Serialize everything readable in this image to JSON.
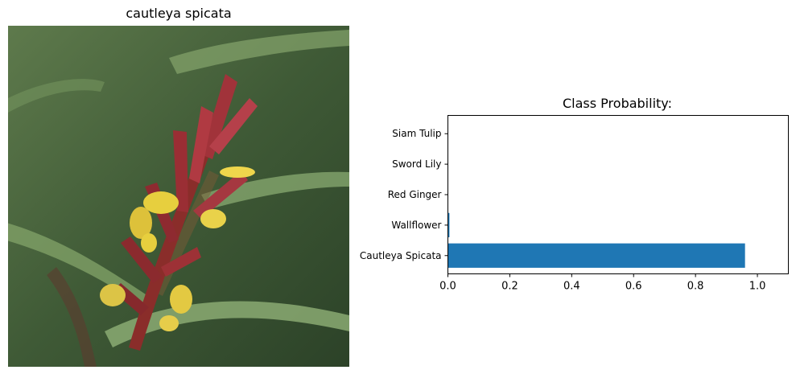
{
  "image_panel": {
    "title": "cautleya spicata",
    "subject": "photo of a cautleya spicata flower spike"
  },
  "chart_data": {
    "type": "bar",
    "orientation": "horizontal",
    "title": "Class Probability:",
    "categories": [
      "Cautleya Spicata",
      "Wallflower",
      "Red Ginger",
      "Sword Lily",
      "Siam Tulip"
    ],
    "values": [
      0.96,
      0.005,
      0.001,
      0.0005,
      0.0002
    ],
    "xlim": [
      0,
      1.1
    ],
    "xticks": [
      0.0,
      0.2,
      0.4,
      0.6,
      0.8,
      1.0
    ],
    "xtick_labels": [
      "0.0",
      "0.2",
      "0.4",
      "0.6",
      "0.8",
      "1.0"
    ],
    "xlabel": "",
    "ylabel": "",
    "bar_color": "#1f77b4"
  }
}
